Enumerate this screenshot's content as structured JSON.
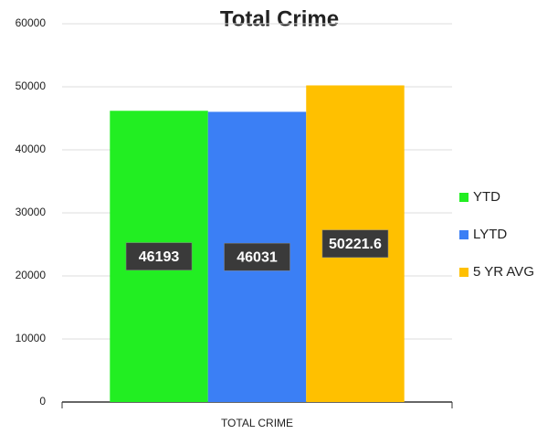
{
  "chart_data": {
    "type": "bar",
    "title": "Total Crime",
    "categories": [
      "TOTAL CRIME"
    ],
    "series": [
      {
        "name": "YTD",
        "color": "#22ee22",
        "values": [
          46193
        ]
      },
      {
        "name": "LYTD",
        "color": "#3b7ff5",
        "values": [
          46031
        ]
      },
      {
        "name": "5 YR AVG",
        "color": "#ffc000",
        "values": [
          50221.6
        ]
      }
    ],
    "ylim": [
      0,
      60000
    ],
    "yticks": [
      0,
      10000,
      20000,
      30000,
      40000,
      50000,
      60000
    ],
    "grid": true,
    "legend": "right",
    "data_labels": true
  }
}
